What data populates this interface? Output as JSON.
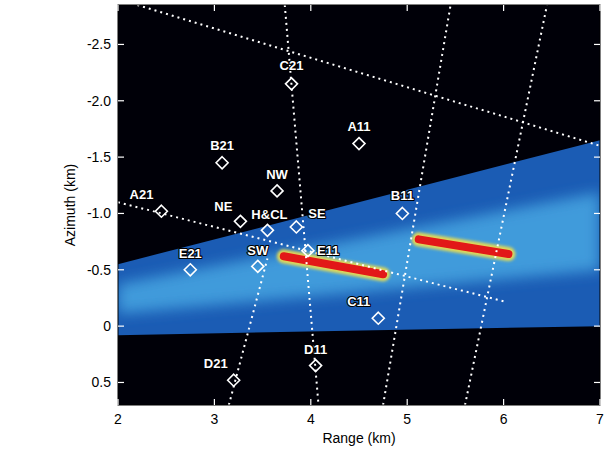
{
  "chart_data": {
    "type": "scatter",
    "x_label": "Range (km)",
    "y_label": "Azimuth (km)",
    "xlim": [
      2,
      7
    ],
    "ylim": [
      0.7,
      -2.85
    ],
    "xticks": [
      2,
      3,
      4,
      5,
      6,
      7
    ],
    "yticks": [
      {
        "value": -2.5,
        "label": "-2.5"
      },
      {
        "value": -2,
        "label": "-2.0"
      },
      {
        "value": -1.5,
        "label": "-1.5"
      },
      {
        "value": -1,
        "label": "-1.0"
      },
      {
        "value": -0.5,
        "label": "-0.5"
      },
      0,
      0.5
    ],
    "grid": false,
    "marker": "diamond",
    "color": "#ffffff",
    "labels": [
      "A21",
      "B21",
      "C21",
      "D21",
      "E21",
      "A11",
      "B11",
      "C11",
      "D11",
      "E11",
      "NW",
      "NE",
      "H&CL",
      "SE",
      "SW"
    ],
    "x": [
      2.45,
      3.08,
      3.8,
      3.2,
      2.75,
      4.5,
      4.95,
      4.7,
      4.05,
      3.97,
      3.65,
      3.27,
      3.55,
      3.85,
      3.45
    ],
    "y": [
      -1.02,
      -1.45,
      -2.15,
      0.48,
      -0.5,
      -1.62,
      -1.0,
      -0.07,
      0.35,
      -0.67,
      -1.2,
      -0.93,
      -0.85,
      -0.88,
      -0.53
    ],
    "beam": {
      "x": [
        2,
        7,
        7,
        2
      ],
      "y": [
        0.08,
        0.0,
        -1.65,
        -0.55
      ]
    },
    "echoes": [
      {
        "x": [
          3.72,
          4.75
        ],
        "y": [
          -0.62,
          -0.46
        ]
      },
      {
        "x": [
          5.12,
          6.05
        ],
        "y": [
          -0.77,
          -0.64
        ]
      }
    ],
    "lines": [
      {
        "x": [
          2.2,
          7
        ],
        "y": [
          -2.85,
          -1.6
        ]
      },
      {
        "x": [
          2,
          6
        ],
        "y": [
          -1.1,
          -0.22
        ]
      },
      {
        "x": [
          3.73,
          4.08
        ],
        "y": [
          -2.85,
          0.7
        ]
      },
      {
        "x": [
          3.15,
          3.55
        ],
        "y": [
          0.7,
          -0.6
        ]
      },
      {
        "x": [
          4.75,
          5.45
        ],
        "y": [
          0.7,
          -2.85
        ]
      },
      {
        "x": [
          5.6,
          6.45
        ],
        "y": [
          0.7,
          -2.85
        ]
      }
    ]
  }
}
